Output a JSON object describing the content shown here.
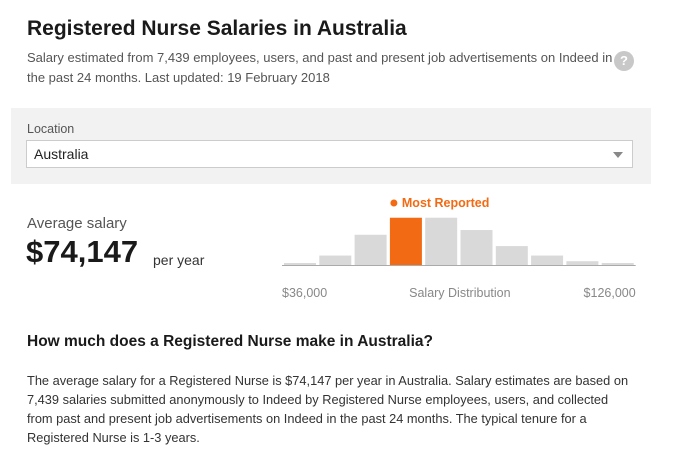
{
  "header": {
    "title": "Registered Nurse Salaries in Australia",
    "subtitle": "Salary estimated from 7,439 employees, users, and past and present job advertisements on Indeed in the past 24 months. Last updated: 19 February 2018",
    "help_icon": "?"
  },
  "location": {
    "label": "Location",
    "selected": "Australia"
  },
  "salary": {
    "label": "Average salary",
    "value": "$74,147",
    "period": "per year"
  },
  "chart_data": {
    "type": "bar",
    "title": "",
    "xlabel": "Salary Distribution",
    "min_label": "$36,000",
    "max_label": "$126,000",
    "legend": "Most Reported",
    "highlight_index": 3,
    "values": [
      1,
      10,
      32,
      50,
      50,
      37,
      20,
      10,
      4,
      2
    ],
    "ylim": [
      0,
      55
    ],
    "colors": {
      "bar": "#d9d9d9",
      "highlight": "#f26a13",
      "axis": "#aaaaaa"
    }
  },
  "faq": {
    "heading": "How much does a Registered Nurse make in Australia?",
    "text": "The average salary for a Registered Nurse is $74,147 per year in Australia. Salary estimates are based on 7,439 salaries submitted anonymously to Indeed by Registered Nurse employees, users, and collected from past and present job advertisements on Indeed in the past 24 months. The typical tenure for a Registered Nurse is 1-3 years."
  }
}
